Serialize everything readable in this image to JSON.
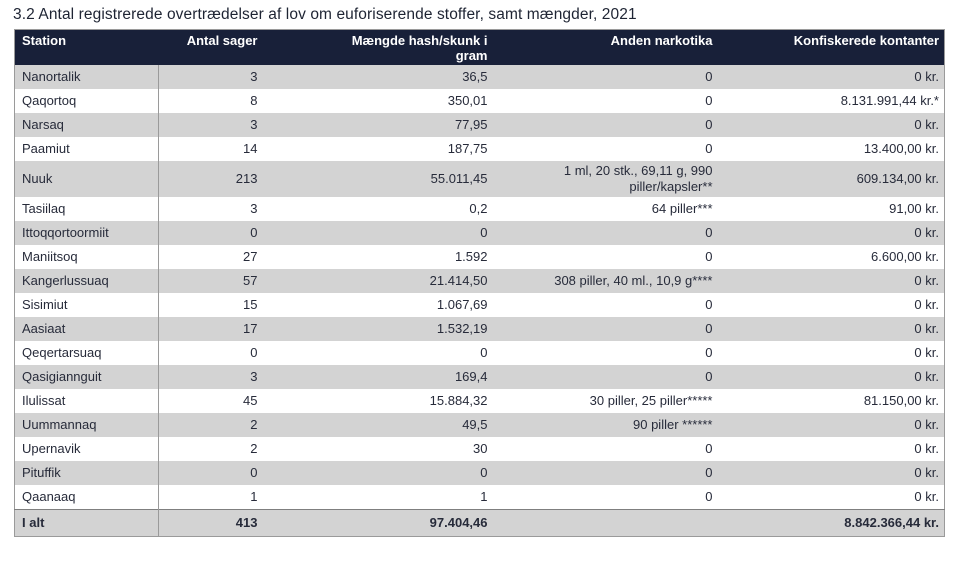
{
  "title": "3.2 Antal registrerede overtrædelser af lov om euforiserende stoffer, samt mængder, 2021",
  "table": {
    "columns": [
      {
        "label": "Station"
      },
      {
        "label": "Antal sager"
      },
      {
        "label": "Mængde hash/skunk i gram"
      },
      {
        "label": "Anden narkotika"
      },
      {
        "label": "Konfiskerede kontanter"
      }
    ],
    "rows": [
      {
        "station": "Nanortalik",
        "cases": "3",
        "hash_grams": "36,5",
        "other_narcotics": "0",
        "cash": "0 kr."
      },
      {
        "station": "Qaqortoq",
        "cases": "8",
        "hash_grams": "350,01",
        "other_narcotics": "0",
        "cash": "8.131.991,44 kr.*"
      },
      {
        "station": "Narsaq",
        "cases": "3",
        "hash_grams": "77,95",
        "other_narcotics": "0",
        "cash": "0 kr."
      },
      {
        "station": "Paamiut",
        "cases": "14",
        "hash_grams": "187,75",
        "other_narcotics": "0",
        "cash": "13.400,00 kr."
      },
      {
        "station": "Nuuk",
        "cases": "213",
        "hash_grams": "55.011,45",
        "other_narcotics": "1 ml, 20 stk., 69,11 g, 990 piller/kapsler**",
        "cash": "609.134,00 kr."
      },
      {
        "station": "Tasiilaq",
        "cases": "3",
        "hash_grams": "0,2",
        "other_narcotics": "64 piller***",
        "cash": "91,00 kr."
      },
      {
        "station": "Ittoqqortoormiit",
        "cases": "0",
        "hash_grams": "0",
        "other_narcotics": "0",
        "cash": "0 kr."
      },
      {
        "station": "Maniitsoq",
        "cases": "27",
        "hash_grams": "1.592",
        "other_narcotics": "0",
        "cash": "6.600,00 kr."
      },
      {
        "station": "Kangerlussuaq",
        "cases": "57",
        "hash_grams": "21.414,50",
        "other_narcotics": "308 piller, 40 ml., 10,9 g****",
        "cash": "0 kr."
      },
      {
        "station": "Sisimiut",
        "cases": "15",
        "hash_grams": "1.067,69",
        "other_narcotics": "0",
        "cash": "0 kr."
      },
      {
        "station": "Aasiaat",
        "cases": "17",
        "hash_grams": "1.532,19",
        "other_narcotics": "0",
        "cash": "0 kr."
      },
      {
        "station": "Qeqertarsuaq",
        "cases": "0",
        "hash_grams": "0",
        "other_narcotics": "0",
        "cash": "0 kr."
      },
      {
        "station": "Qasigiannguit",
        "cases": "3",
        "hash_grams": "169,4",
        "other_narcotics": "0",
        "cash": "0 kr."
      },
      {
        "station": "Ilulissat",
        "cases": "45",
        "hash_grams": "15.884,32",
        "other_narcotics": "30 piller, 25 piller*****",
        "cash": "81.150,00 kr."
      },
      {
        "station": "Uummannaq",
        "cases": "2",
        "hash_grams": "49,5",
        "other_narcotics": "90 piller ******",
        "cash": "0 kr."
      },
      {
        "station": "Upernavik",
        "cases": "2",
        "hash_grams": "30",
        "other_narcotics": "0",
        "cash": "0 kr."
      },
      {
        "station": "Pituffik",
        "cases": "0",
        "hash_grams": "0",
        "other_narcotics": "0",
        "cash": "0 kr."
      },
      {
        "station": "Qaanaaq",
        "cases": "1",
        "hash_grams": "1",
        "other_narcotics": "0",
        "cash": "0 kr."
      }
    ],
    "total_row": {
      "station": "I alt",
      "cases": "413",
      "hash_grams": "97.404,46",
      "other_narcotics": "",
      "cash": "8.842.366,44 kr."
    }
  },
  "colors": {
    "header_bg": "#182039",
    "header_text": "#ffffff",
    "stripe_bg": "#d3d3d3",
    "row_bg": "#ffffff",
    "body_text": "#272b3a",
    "border": "#9a9a9a"
  }
}
